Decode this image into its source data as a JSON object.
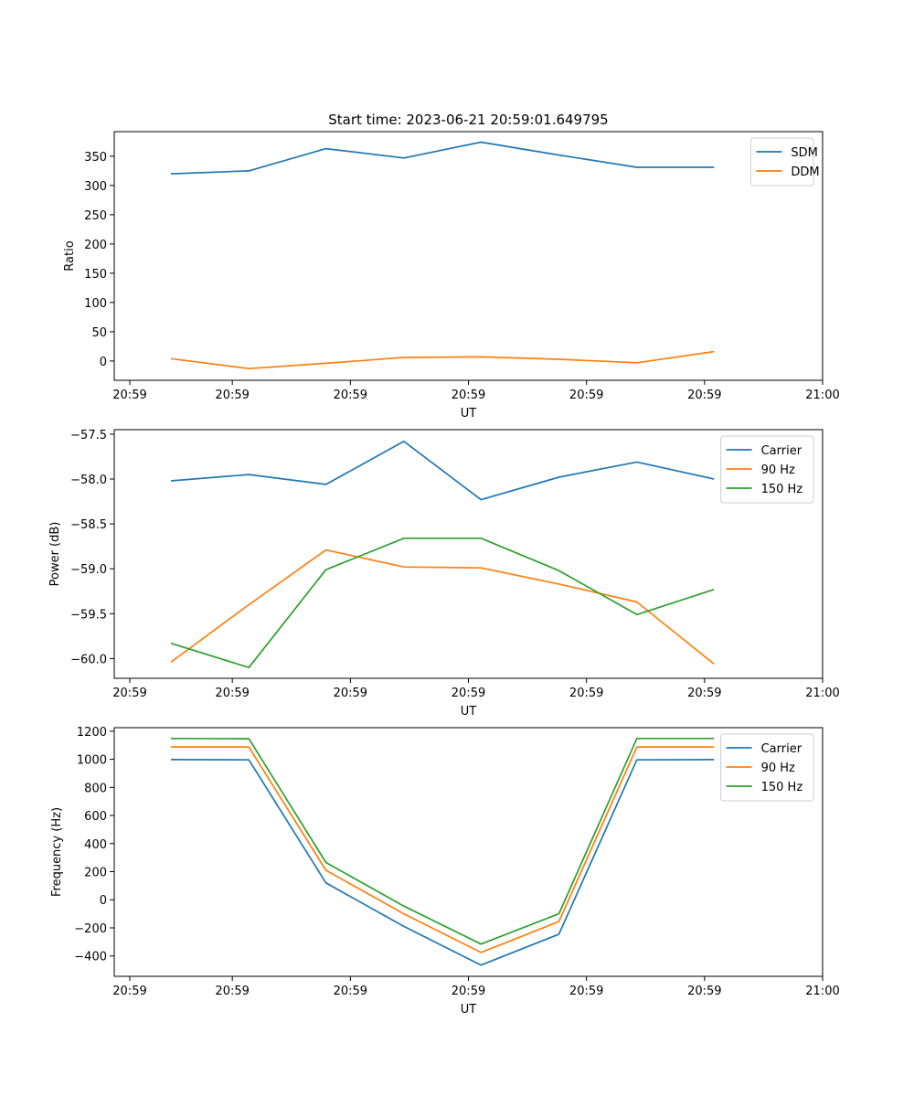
{
  "chart_data": [
    {
      "type": "line",
      "title": "Start time: 2023-06-21 20:59:01.649795",
      "xlabel": "UT",
      "ylabel": "Ratio",
      "xlim": [
        0,
        9
      ],
      "ylim": [
        -33,
        392
      ],
      "x_tick_positions": [
        0,
        1.5,
        3,
        4.5,
        6,
        7.5,
        9
      ],
      "x_tick_labels": [
        "20:59",
        "20:59",
        "20:59",
        "20:59",
        "20:59",
        "20:59",
        "21:00"
      ],
      "y_ticks": [
        0,
        50,
        100,
        150,
        200,
        250,
        300,
        350
      ],
      "y_tick_labels": [
        "0",
        "50",
        "100",
        "150",
        "200",
        "250",
        "300",
        "350"
      ],
      "legend_position": "top-right",
      "x": [
        0.72,
        1.71,
        2.69,
        3.68,
        4.66,
        5.65,
        6.64,
        7.62
      ],
      "series": [
        {
          "name": "SDM",
          "color": "#1f77b4",
          "values": [
            320,
            325,
            363,
            347,
            374,
            352,
            331,
            331
          ]
        },
        {
          "name": "DDM",
          "color": "#ff7f0e",
          "values": [
            4,
            -13,
            -4,
            6,
            7,
            3,
            -3,
            16
          ]
        }
      ]
    },
    {
      "type": "line",
      "title": "",
      "xlabel": "UT",
      "ylabel": "Power (dB)",
      "xlim": [
        0,
        9
      ],
      "ylim": [
        -60.22,
        -57.45
      ],
      "x_tick_positions": [
        0,
        1.5,
        3,
        4.5,
        6,
        7.5,
        9
      ],
      "x_tick_labels": [
        "20:59",
        "20:59",
        "20:59",
        "20:59",
        "20:59",
        "20:59",
        "21:00"
      ],
      "y_ticks": [
        -60.0,
        -59.5,
        -59.0,
        -58.5,
        -58.0,
        -57.5
      ],
      "y_tick_labels": [
        "−60.0",
        "−59.5",
        "−59.0",
        "−58.5",
        "−58.0",
        "−57.5"
      ],
      "legend_position": "top-right",
      "x": [
        0.72,
        1.71,
        2.69,
        3.68,
        4.66,
        5.65,
        6.64,
        7.62
      ],
      "series": [
        {
          "name": "Carrier",
          "color": "#1f77b4",
          "values": [
            -58.02,
            -57.95,
            -58.06,
            -57.58,
            -58.23,
            -57.98,
            -57.81,
            -58.0
          ]
        },
        {
          "name": "90 Hz",
          "color": "#ff7f0e",
          "values": [
            -60.04,
            -59.4,
            -58.79,
            -58.98,
            -58.99,
            -59.17,
            -59.37,
            -60.06
          ]
        },
        {
          "name": "150 Hz",
          "color": "#2ca02c",
          "values": [
            -59.83,
            -60.1,
            -59.01,
            -58.66,
            -58.66,
            -59.02,
            -59.51,
            -59.23
          ]
        }
      ]
    },
    {
      "type": "line",
      "title": "",
      "xlabel": "UT",
      "ylabel": "Frequency (Hz)",
      "xlim": [
        0,
        9
      ],
      "ylim": [
        -545,
        1225
      ],
      "x_tick_positions": [
        0,
        1.5,
        3,
        4.5,
        6,
        7.5,
        9
      ],
      "x_tick_labels": [
        "20:59",
        "20:59",
        "20:59",
        "20:59",
        "20:59",
        "20:59",
        "21:00"
      ],
      "y_ticks": [
        -400,
        -200,
        0,
        200,
        400,
        600,
        800,
        1000,
        1200
      ],
      "y_tick_labels": [
        "−400",
        "−200",
        "0",
        "200",
        "400",
        "600",
        "800",
        "1000",
        "1200"
      ],
      "legend_position": "top-right",
      "x": [
        0.72,
        1.71,
        2.69,
        3.68,
        4.66,
        5.65,
        6.64,
        7.62
      ],
      "series": [
        {
          "name": "Carrier",
          "color": "#1f77b4",
          "values": [
            998,
            996,
            120,
            -190,
            -465,
            -245,
            996,
            998
          ]
        },
        {
          "name": "90 Hz",
          "color": "#ff7f0e",
          "values": [
            1088,
            1088,
            210,
            -100,
            -375,
            -155,
            1088,
            1088
          ]
        },
        {
          "name": "150 Hz",
          "color": "#2ca02c",
          "values": [
            1148,
            1146,
            265,
            -45,
            -315,
            -100,
            1148,
            1148
          ]
        }
      ]
    }
  ]
}
